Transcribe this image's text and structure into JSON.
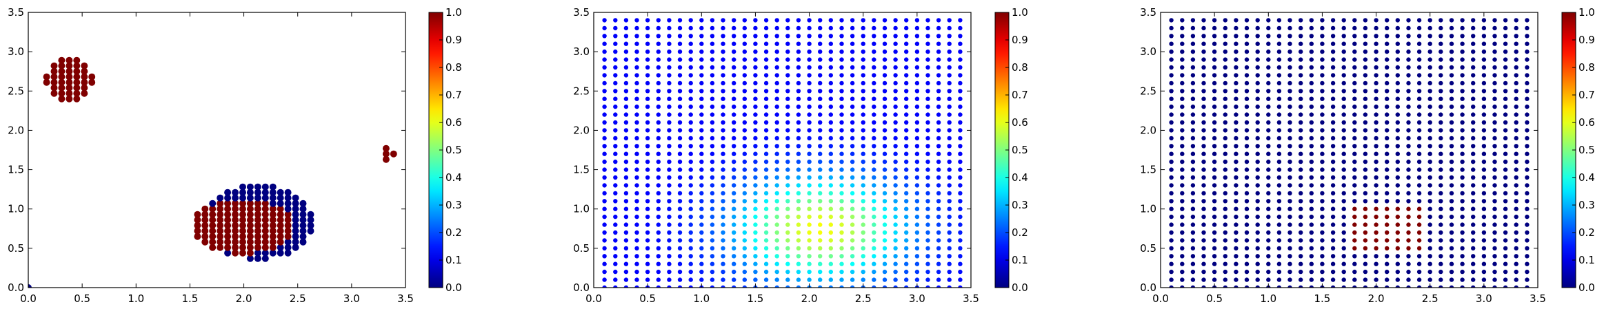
{
  "chart_data": [
    {
      "type": "scatter",
      "xlim": [
        0,
        3.5
      ],
      "ylim": [
        0,
        3.5
      ],
      "xticks": [
        "0.0",
        "0.5",
        "1.0",
        "1.5",
        "2.0",
        "2.5",
        "3.0",
        "3.5"
      ],
      "yticks": [
        "0.0",
        "0.5",
        "1.0",
        "1.5",
        "2.0",
        "2.5",
        "3.0",
        "3.5"
      ],
      "colorbar": {
        "range": [
          0,
          1
        ],
        "ticks": [
          "0.0",
          "0.1",
          "0.2",
          "0.3",
          "0.4",
          "0.5",
          "0.6",
          "0.7",
          "0.8",
          "0.9",
          "1.0"
        ],
        "colormap": "jet"
      },
      "grid": false,
      "marker_spacing": 0.07,
      "points_rule": "dense grid of points inside regions; value 1 in red clusters, 0 in blue ring around the lower cluster",
      "regions": [
        {
          "shape": "ellipse",
          "cx": 0.38,
          "cy": 2.65,
          "rx": 0.22,
          "ry": 0.3,
          "value": 1.0
        },
        {
          "shape": "ellipse",
          "cx": 3.33,
          "cy": 1.7,
          "rx": 0.07,
          "ry": 0.13,
          "value": 1.0
        },
        {
          "shape": "ellipse",
          "cx": 2.12,
          "cy": 0.83,
          "rx": 0.52,
          "ry": 0.47,
          "value": 0.0
        },
        {
          "shape": "ellipse",
          "cx": 2.0,
          "cy": 0.78,
          "rx": 0.48,
          "ry": 0.35,
          "value": 1.0
        }
      ]
    },
    {
      "type": "scatter",
      "xlim": [
        0,
        3.5
      ],
      "ylim": [
        0,
        3.5
      ],
      "xticks": [
        "0.0",
        "0.5",
        "1.0",
        "1.5",
        "2.0",
        "2.5",
        "3.0",
        "3.5"
      ],
      "yticks": [
        "0.0",
        "0.5",
        "1.0",
        "1.5",
        "2.0",
        "2.5",
        "3.0",
        "3.5"
      ],
      "colorbar": {
        "range": [
          0,
          1
        ],
        "ticks": [
          "0.0",
          "0.1",
          "0.2",
          "0.3",
          "0.4",
          "0.5",
          "0.6",
          "0.7",
          "0.8",
          "0.9",
          "1.0"
        ],
        "colormap": "jet"
      },
      "grid": false,
      "x_range": [
        0.1,
        3.4
      ],
      "y_range": [
        0.0,
        3.4
      ],
      "step": 0.1,
      "field": {
        "type": "gaussian",
        "center": [
          2.1,
          0.75
        ],
        "sigma": [
          0.55,
          0.45
        ],
        "peak": 0.62,
        "base": 0.12
      }
    },
    {
      "type": "scatter",
      "xlim": [
        0,
        3.5
      ],
      "ylim": [
        0,
        3.5
      ],
      "xticks": [
        "0.0",
        "0.5",
        "1.0",
        "1.5",
        "2.0",
        "2.5",
        "3.0",
        "3.5"
      ],
      "yticks": [
        "0.0",
        "0.5",
        "1.0",
        "1.5",
        "2.0",
        "2.5",
        "3.0",
        "3.5"
      ],
      "colorbar": {
        "range": [
          0,
          1
        ],
        "ticks": [
          "0.0",
          "0.1",
          "0.2",
          "0.3",
          "0.4",
          "0.5",
          "0.6",
          "0.7",
          "0.8",
          "0.9",
          "1.0"
        ],
        "colormap": "jet"
      },
      "grid": false,
      "x_range": [
        0.1,
        3.4
      ],
      "y_range": [
        0.0,
        3.4
      ],
      "step": 0.1,
      "high_region": {
        "x": [
          1.8,
          2.4
        ],
        "y": [
          0.5,
          1.0
        ],
        "value": 1.0
      },
      "background_value": 0.0
    }
  ]
}
